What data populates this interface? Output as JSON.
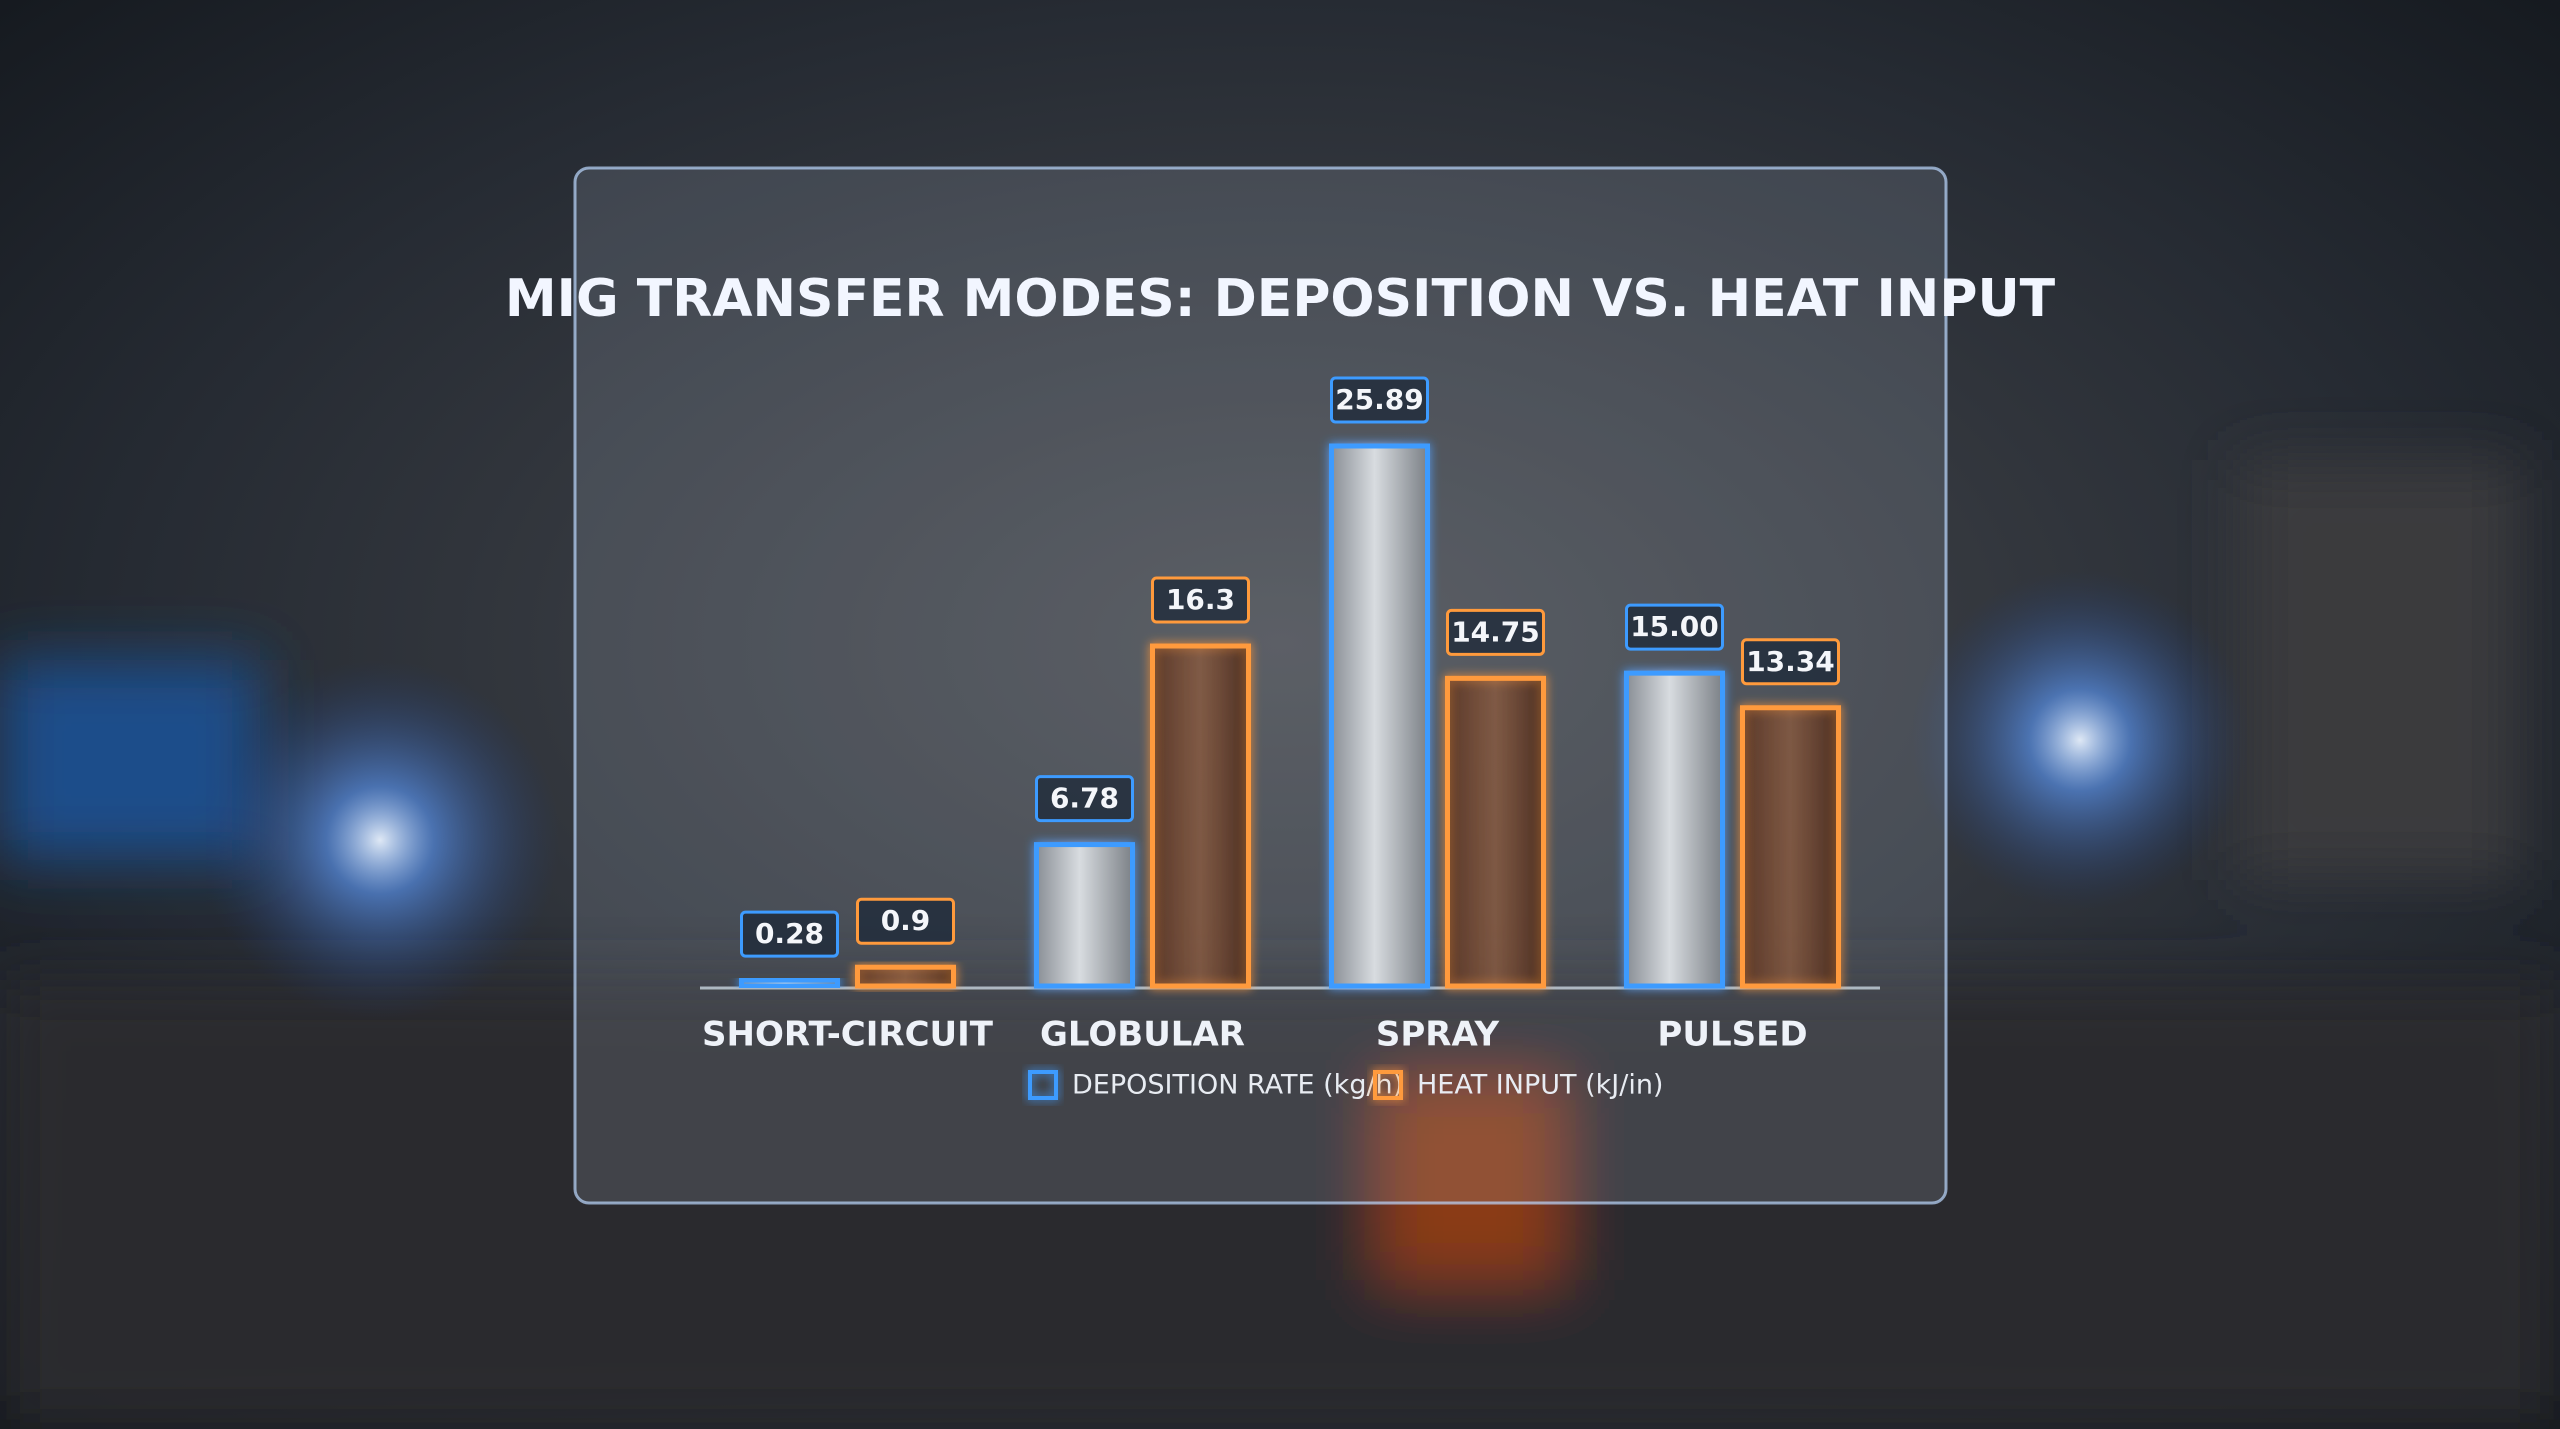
{
  "chart_data": {
    "type": "bar",
    "title": "MIG TRANSFER MODES: DEPOSITION VS. HEAT INPUT",
    "categories": [
      "SHORT-CIRCUIT",
      "GLOBULAR",
      "SPRAY",
      "PULSED"
    ],
    "series": [
      {
        "name": "DEPOSITION RATE (kg/h)",
        "color": "#3d9bff",
        "values": [
          0.28,
          6.78,
          25.89,
          15.0
        ],
        "value_labels": [
          "0.28",
          "6.78",
          "25.89",
          "15.00"
        ]
      },
      {
        "name": "HEAT INPUT (kJ/in)",
        "color": "#ff9a3c",
        "values": [
          0.9,
          16.3,
          14.75,
          13.34
        ],
        "value_labels": [
          "0.9",
          "16.3",
          "14.75",
          "13.34"
        ]
      }
    ]
  }
}
